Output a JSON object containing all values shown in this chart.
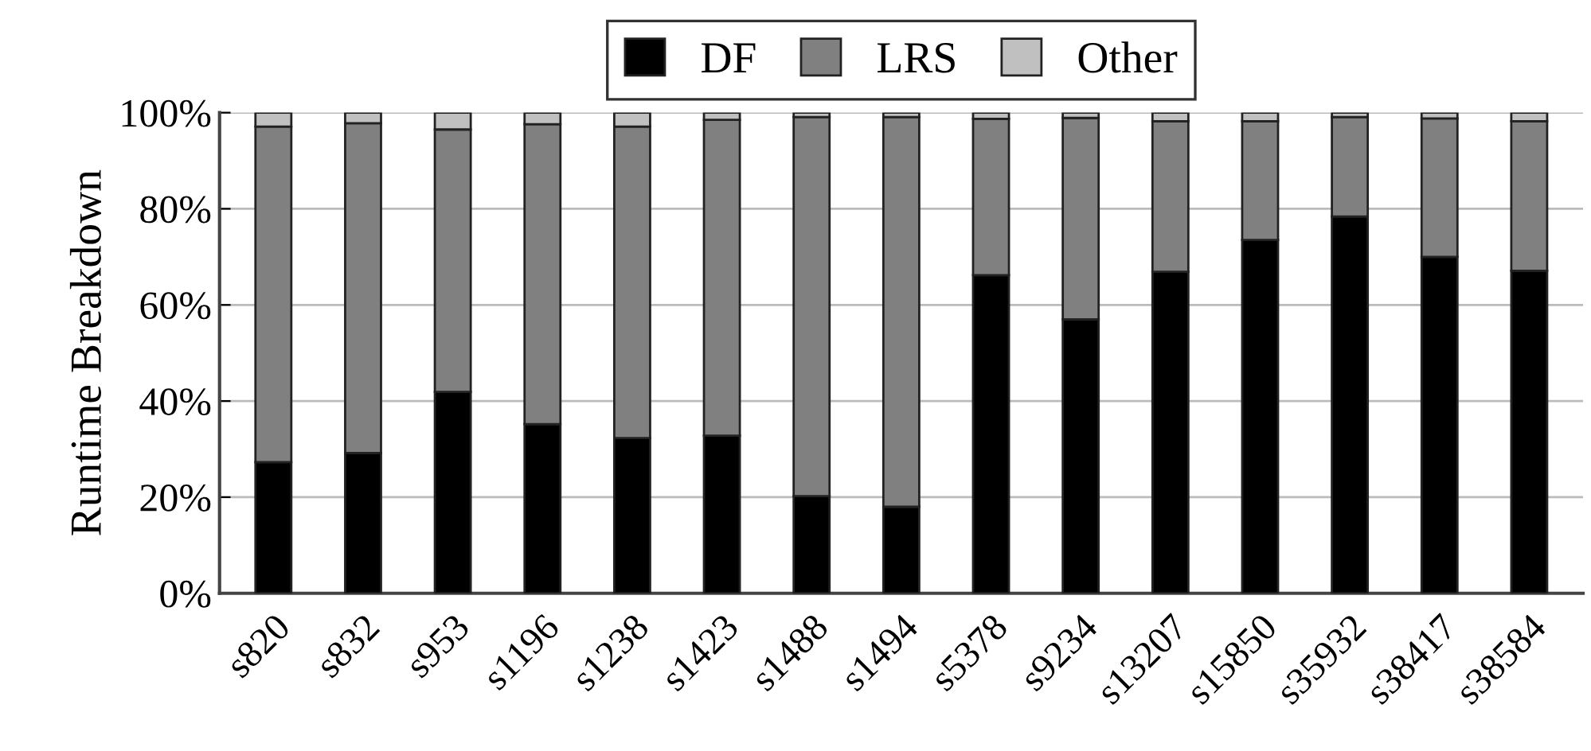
{
  "chart_data": {
    "type": "bar",
    "stacked": true,
    "ylabel": "Runtime Breakdown",
    "categories": [
      "s820",
      "s832",
      "s953",
      "s1196",
      "s1238",
      "s1423",
      "s1488",
      "s1494",
      "s5378",
      "s9234",
      "s13207",
      "s15850",
      "s35932",
      "s38417",
      "s38584"
    ],
    "series": [
      {
        "name": "DF",
        "color": "#000000",
        "values": [
          27.3,
          29.2,
          41.9,
          35.2,
          32.3,
          32.8,
          20.2,
          18.0,
          66.2,
          57.0,
          66.9,
          73.5,
          78.4,
          70.0,
          67.1
        ]
      },
      {
        "name": "LRS",
        "color": "#808080",
        "values": [
          69.8,
          68.6,
          54.6,
          62.4,
          64.8,
          65.7,
          78.9,
          81.1,
          32.5,
          41.9,
          31.3,
          24.7,
          20.7,
          28.8,
          31.1
        ]
      },
      {
        "name": "Other",
        "color": "#c0c0c0",
        "values": [
          2.9,
          2.2,
          3.5,
          2.4,
          2.9,
          1.5,
          0.9,
          0.9,
          1.3,
          1.1,
          1.8,
          1.8,
          0.9,
          1.2,
          1.8
        ]
      }
    ],
    "ylim": [
      0,
      100
    ],
    "yticks": [
      {
        "value": 0,
        "label": "0%"
      },
      {
        "value": 20,
        "label": "20%"
      },
      {
        "value": 40,
        "label": "40%"
      },
      {
        "value": 60,
        "label": "60%"
      },
      {
        "value": 80,
        "label": "80%"
      },
      {
        "value": 100,
        "label": "100%"
      }
    ],
    "grid": "y",
    "legend": "top"
  }
}
